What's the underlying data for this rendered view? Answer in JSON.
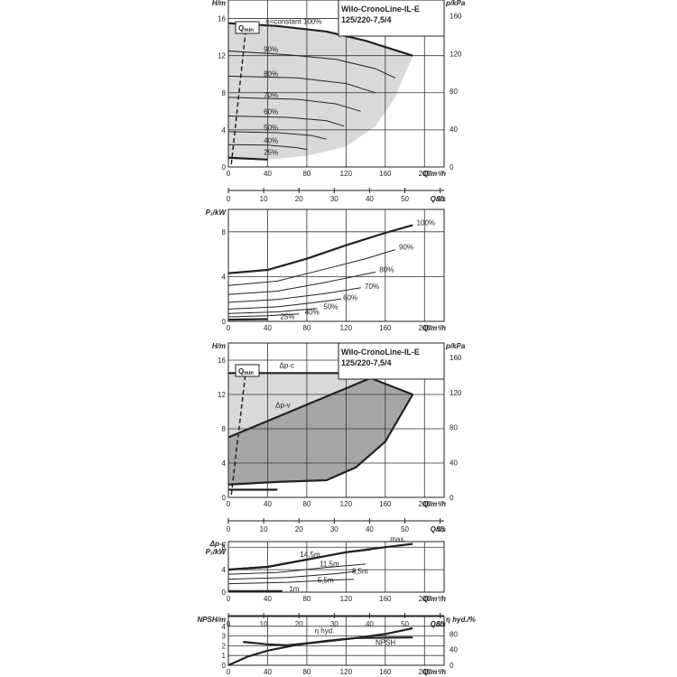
{
  "colors": {
    "curve": "#222222",
    "area_light": "#d9d9d9",
    "area_dark": "#a6a6a6",
    "grid": "#333333"
  },
  "chart_data": [
    {
      "id": "hq",
      "type": "line",
      "title_lines": [
        "Wilo-CronoLine-IL-E",
        "125/220-7,5/4"
      ],
      "ylabel": "H/m",
      "y2label": "p/kPa",
      "xlabel": "Q/m³/h",
      "x2label": "Q/l/s",
      "xlim": [
        0,
        220
      ],
      "ylim": [
        0,
        18
      ],
      "y2lim": [
        0,
        176.6
      ],
      "xticks": [
        "0",
        "40",
        "80",
        "120",
        "160",
        "200"
      ],
      "xtick_values": [
        0,
        40,
        80,
        120,
        160,
        200
      ],
      "yticks": [
        "0",
        "4",
        "8",
        "12",
        "16"
      ],
      "ytick_values": [
        0,
        4,
        8,
        12,
        16
      ],
      "y2ticks": [
        "0",
        "40",
        "80",
        "120",
        "160"
      ],
      "y2tick_values": [
        0,
        40,
        80,
        120,
        160
      ],
      "x2ticks": [
        "0",
        "10",
        "20",
        "30",
        "40",
        "50",
        "60"
      ],
      "x2tick_values": [
        0,
        10,
        20,
        30,
        40,
        50,
        60
      ],
      "qmin_label": "Q",
      "qmin_sub": "min",
      "qmin_line": [
        [
          3,
          0.3
        ],
        [
          18,
          15
        ]
      ],
      "area": [
        [
          0,
          15.5
        ],
        [
          50,
          15.2
        ],
        [
          100,
          14.6
        ],
        [
          140,
          13.6
        ],
        [
          188,
          12
        ],
        [
          170,
          7.5
        ],
        [
          150,
          4.4
        ],
        [
          120,
          2.2
        ],
        [
          80,
          1.2
        ],
        [
          40,
          0.8
        ],
        [
          0,
          0.8
        ]
      ],
      "series": [
        {
          "label": "n=constant 100%",
          "points": [
            [
              0,
              15.5
            ],
            [
              50,
              15.2
            ],
            [
              100,
              14.6
            ],
            [
              140,
              13.6
            ],
            [
              188,
              12
            ]
          ],
          "bold": true,
          "lx": 38,
          "ly": 15.4
        },
        {
          "label": "90%",
          "points": [
            [
              0,
              12.5
            ],
            [
              60,
              12.1
            ],
            [
              110,
              11.6
            ],
            [
              150,
              10.6
            ],
            [
              170,
              9.6
            ]
          ],
          "bold": false,
          "lx": 36,
          "ly": 12.4
        },
        {
          "label": "80%",
          "points": [
            [
              0,
              9.8
            ],
            [
              70,
              9.6
            ],
            [
              120,
              9
            ],
            [
              150,
              8
            ]
          ],
          "bold": false,
          "lx": 36,
          "ly": 9.8
        },
        {
          "label": "70%",
          "points": [
            [
              0,
              7.5
            ],
            [
              70,
              7.3
            ],
            [
              110,
              6.8
            ],
            [
              135,
              6
            ]
          ],
          "bold": false,
          "lx": 36,
          "ly": 7.5
        },
        {
          "label": "60%",
          "points": [
            [
              0,
              5.5
            ],
            [
              60,
              5.35
            ],
            [
              100,
              5
            ],
            [
              118,
              4.4
            ]
          ],
          "bold": false,
          "lx": 36,
          "ly": 5.7
        },
        {
          "label": "50%",
          "points": [
            [
              0,
              3.8
            ],
            [
              50,
              3.7
            ],
            [
              85,
              3.4
            ],
            [
              100,
              3
            ]
          ],
          "bold": false,
          "lx": 36,
          "ly": 4.0
        },
        {
          "label": "40%",
          "points": [
            [
              0,
              2.4
            ],
            [
              40,
              2.35
            ],
            [
              68,
              2.1
            ],
            [
              80,
              1.9
            ]
          ],
          "bold": false,
          "lx": 36,
          "ly": 2.6
        },
        {
          "label": "25%",
          "points": [
            [
              0,
              1.0
            ],
            [
              40,
              0.8
            ]
          ],
          "bold": true,
          "lx": 36,
          "ly": 1.3
        }
      ]
    },
    {
      "id": "power",
      "type": "line",
      "ylabel": "P₁/kW",
      "xlabel": "Q/m³/h",
      "xlim": [
        0,
        220
      ],
      "ylim": [
        0,
        10
      ],
      "xticks": [
        "0",
        "40",
        "80",
        "120",
        "160",
        "200"
      ],
      "xtick_values": [
        0,
        40,
        80,
        120,
        160,
        200
      ],
      "yticks": [
        "0",
        "4",
        "8"
      ],
      "ytick_values": [
        0,
        4,
        8
      ],
      "series": [
        {
          "label": "100%",
          "points": [
            [
              0,
              4.3
            ],
            [
              40,
              4.6
            ],
            [
              80,
              5.6
            ],
            [
              120,
              6.8
            ],
            [
              160,
              7.9
            ],
            [
              188,
              8.6
            ]
          ],
          "bold": true,
          "lx": 192,
          "ly": 8.6
        },
        {
          "label": "90%",
          "points": [
            [
              0,
              3.2
            ],
            [
              50,
              3.6
            ],
            [
              100,
              4.7
            ],
            [
              140,
              5.6
            ],
            [
              170,
              6.4
            ]
          ],
          "bold": false,
          "lx": 174,
          "ly": 6.4
        },
        {
          "label": "80%",
          "points": [
            [
              0,
              2.4
            ],
            [
              50,
              2.7
            ],
            [
              100,
              3.5
            ],
            [
              150,
              4.4
            ]
          ],
          "bold": false,
          "lx": 154,
          "ly": 4.4
        },
        {
          "label": "70%",
          "points": [
            [
              0,
              1.7
            ],
            [
              50,
              1.95
            ],
            [
              100,
              2.5
            ],
            [
              135,
              3.0
            ]
          ],
          "bold": false,
          "lx": 139,
          "ly": 2.9
        },
        {
          "label": "60%",
          "points": [
            [
              0,
              1.1
            ],
            [
              50,
              1.3
            ],
            [
              90,
              1.7
            ],
            [
              115,
              2.0
            ]
          ],
          "bold": false,
          "lx": 117,
          "ly": 1.9
        },
        {
          "label": "50%",
          "points": [
            [
              0,
              0.7
            ],
            [
              50,
              0.85
            ],
            [
              90,
              1.15
            ]
          ],
          "bold": false,
          "lx": 97,
          "ly": 1.1
        },
        {
          "label": "40%",
          "points": [
            [
              0,
              0.4
            ],
            [
              40,
              0.5
            ],
            [
              72,
              0.65
            ]
          ],
          "bold": false,
          "lx": 78,
          "ly": 0.6
        },
        {
          "label": "25%",
          "points": [
            [
              0,
              0.15
            ],
            [
              40,
              0.2
            ]
          ],
          "bold": true,
          "lx": 53,
          "ly": 0.2
        }
      ]
    },
    {
      "id": "hq2",
      "type": "area",
      "title_lines": [
        "Wilo-CronoLine-IL-E",
        "125/220-7,5/4"
      ],
      "ylabel": "H/m",
      "y2label": "p/kPa",
      "xlabel": "Q/m³/h",
      "x2label": "Q/l/s",
      "xlim": [
        0,
        220
      ],
      "ylim": [
        0,
        18
      ],
      "y2lim": [
        0,
        176.6
      ],
      "xticks": [
        "0",
        "40",
        "80",
        "120",
        "160",
        "200"
      ],
      "xtick_values": [
        0,
        40,
        80,
        120,
        160,
        200
      ],
      "yticks": [
        "0",
        "4",
        "8",
        "12",
        "16"
      ],
      "ytick_values": [
        0,
        4,
        8,
        12,
        16
      ],
      "y2ticks": [
        "0",
        "40",
        "80",
        "120",
        "160"
      ],
      "y2tick_values": [
        0,
        40,
        80,
        120,
        160
      ],
      "x2ticks": [
        "0",
        "10",
        "20",
        "30",
        "40",
        "50",
        "60"
      ],
      "x2tick_values": [
        0,
        10,
        20,
        30,
        40,
        50,
        60
      ],
      "qmin_label": "Q",
      "qmin_sub": "min",
      "qmin_line": [
        [
          3,
          0.3
        ],
        [
          18,
          15
        ]
      ],
      "light_area": [
        [
          0,
          14.5
        ],
        [
          120,
          14.5
        ],
        [
          145,
          13.9
        ],
        [
          188,
          12
        ],
        [
          0,
          7
        ]
      ],
      "dark_area": [
        [
          0,
          7
        ],
        [
          145,
          13.9
        ],
        [
          188,
          12
        ],
        [
          160,
          6.5
        ],
        [
          130,
          3.5
        ],
        [
          100,
          2
        ],
        [
          50,
          1.8
        ],
        [
          0,
          1.5
        ]
      ],
      "series": [
        {
          "label": "Δp-c",
          "points": [
            [
              0,
              14.5
            ],
            [
              120,
              14.5
            ],
            [
              145,
              13.9
            ]
          ],
          "bold": true,
          "lx": 52,
          "ly": 15.1
        },
        {
          "label": "max.",
          "points": [
            [
              145,
              13.9
            ],
            [
              188,
              12
            ]
          ],
          "bold": true,
          "lx": 143,
          "ly": 14.6
        },
        {
          "label": "Δp-v",
          "points": [
            [
              0,
              7
            ],
            [
              145,
              13.9
            ]
          ],
          "bold": true,
          "lx": 48,
          "ly": 10.5
        },
        {
          "label": "",
          "points": [
            [
              188,
              12
            ],
            [
              160,
              6.5
            ],
            [
              130,
              3.5
            ],
            [
              100,
              2
            ],
            [
              50,
              1.8
            ],
            [
              0,
              1.5
            ]
          ],
          "bold": true,
          "lx": 0,
          "ly": 0
        },
        {
          "label": "",
          "points": [
            [
              0,
              0.9
            ],
            [
              50,
              0.9
            ]
          ],
          "bold": true,
          "lx": 0,
          "ly": 0
        }
      ]
    },
    {
      "id": "power2",
      "type": "line",
      "ylabel_lines": [
        "Δp-c",
        "P₁/kW"
      ],
      "xlabel": "Q/m³/h",
      "x2label": "Q/l/s",
      "xlim": [
        0,
        220
      ],
      "ylim": [
        0,
        9
      ],
      "xticks": [
        "0",
        "40",
        "80",
        "120",
        "160",
        "200"
      ],
      "xtick_values": [
        0,
        40,
        80,
        120,
        160,
        200
      ],
      "x2ticks": [
        "0",
        "10",
        "20",
        "30",
        "40",
        "50",
        "60"
      ],
      "x2tick_values": [
        0,
        10,
        20,
        30,
        40,
        50,
        60
      ],
      "yticks": [
        "0",
        "4",
        "8"
      ],
      "ytick_values": [
        0,
        4,
        8
      ],
      "series": [
        {
          "label": "max.",
          "points": [
            [
              0,
              4
            ],
            [
              40,
              4.5
            ],
            [
              80,
              5.8
            ],
            [
              120,
              7.1
            ],
            [
              160,
              8
            ],
            [
              188,
              8.6
            ]
          ],
          "bold": true,
          "lx": 165,
          "ly": 9.0
        },
        {
          "label": "14,5m",
          "points": [
            [
              0,
              4
            ],
            [
              40,
              4.5
            ],
            [
              80,
              5.8
            ],
            [
              120,
              7.1
            ],
            [
              145,
              7.6
            ]
          ],
          "bold": true,
          "lx": 73,
          "ly": 6.3
        },
        {
          "label": "11,5m",
          "points": [
            [
              0,
              3.2
            ],
            [
              50,
              3.5
            ],
            [
              100,
              4.4
            ],
            [
              140,
              5
            ]
          ],
          "bold": false,
          "lx": 93,
          "ly": 4.6
        },
        {
          "label": "8,5m",
          "points": [
            [
              0,
              2.3
            ],
            [
              60,
              2.6
            ],
            [
              110,
              3.3
            ],
            [
              130,
              3.7
            ]
          ],
          "bold": false,
          "lx": 126,
          "ly": 3.3
        },
        {
          "label": "5,5m",
          "points": [
            [
              0,
              1.5
            ],
            [
              60,
              1.75
            ],
            [
              100,
              2.1
            ],
            [
              128,
              2.3
            ]
          ],
          "bold": false,
          "lx": 91,
          "ly": 1.7
        },
        {
          "label": "1m",
          "points": [
            [
              0,
              0.2
            ],
            [
              55,
              0.2
            ]
          ],
          "bold": true,
          "lx": 62,
          "ly": 0.2
        }
      ]
    },
    {
      "id": "npsh",
      "type": "line",
      "ylabel": "NPSH/m",
      "y2label": "η hyd./%",
      "xlabel": "Q/m³/h",
      "xlim": [
        0,
        220
      ],
      "ylim": [
        0,
        5
      ],
      "y2lim": [
        0,
        125
      ],
      "xticks": [
        "0",
        "40",
        "80",
        "120",
        "160",
        "200"
      ],
      "xtick_values": [
        0,
        40,
        80,
        120,
        160,
        200
      ],
      "yticks": [
        "0",
        "1",
        "2",
        "3",
        "4"
      ],
      "ytick_values": [
        0,
        1,
        2,
        3,
        4
      ],
      "y2ticks": [
        "0",
        "40",
        "80"
      ],
      "y2tick_values": [
        0,
        40,
        80
      ],
      "series": [
        {
          "label": "η hyd.",
          "points": [
            [
              0,
              0
            ],
            [
              20,
              0.9
            ],
            [
              40,
              1.5
            ],
            [
              70,
              2.1
            ],
            [
              100,
              2.5
            ],
            [
              130,
              2.8
            ],
            [
              160,
              3.2
            ],
            [
              188,
              3.8
            ]
          ],
          "bold": true,
          "lx": 88,
          "ly": 3.3
        },
        {
          "label": "NPSH",
          "points": [
            [
              15,
              2.4
            ],
            [
              40,
              2.15
            ],
            [
              60,
              2.05
            ],
            [
              100,
              2.45
            ],
            [
              130,
              2.8
            ],
            [
              188,
              2.85
            ]
          ],
          "bold": true,
          "lx": 150,
          "ly": 2.1
        }
      ]
    }
  ]
}
